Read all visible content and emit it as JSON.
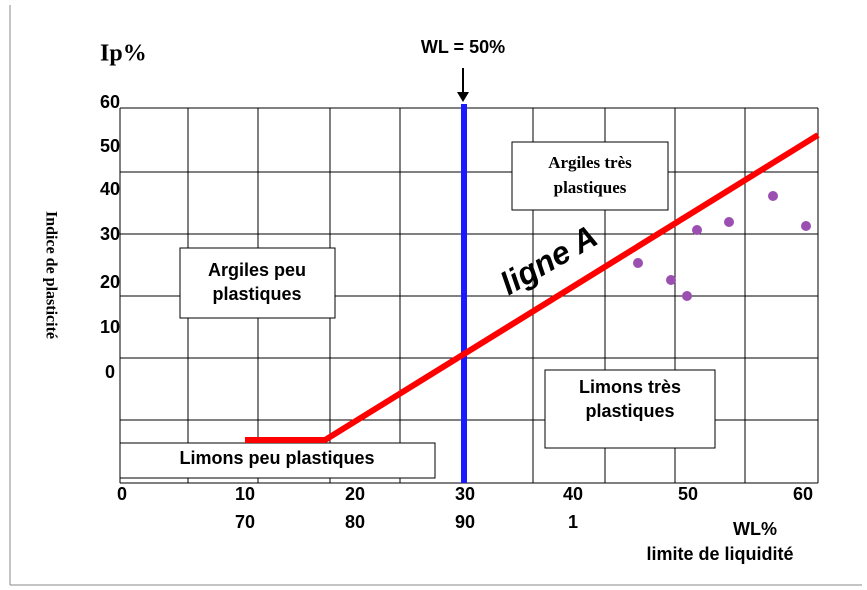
{
  "axis": {
    "y_title": "Ip%",
    "y_label": "Indice de plasticité",
    "y_ticks": [
      "60",
      "50",
      "40",
      "30",
      "20",
      "10",
      "0"
    ],
    "x_ticks_row1": [
      "0",
      "10",
      "20",
      "30",
      "40",
      "50",
      "60"
    ],
    "x_ticks_row2": [
      "70",
      "80",
      "90",
      "1"
    ],
    "x_title": "WL%",
    "x_label": "limite de liquidité"
  },
  "marker": {
    "label": "WL = 50%"
  },
  "line": {
    "label": "ligne A"
  },
  "regions": [
    {
      "lines": [
        "Argiles très",
        "plastiques"
      ]
    },
    {
      "lines": [
        "Argiles peu",
        "plastiques"
      ]
    },
    {
      "lines": [
        "Limons très",
        "plastiques"
      ]
    },
    {
      "lines": [
        "Limons peu plastiques"
      ]
    }
  ]
}
